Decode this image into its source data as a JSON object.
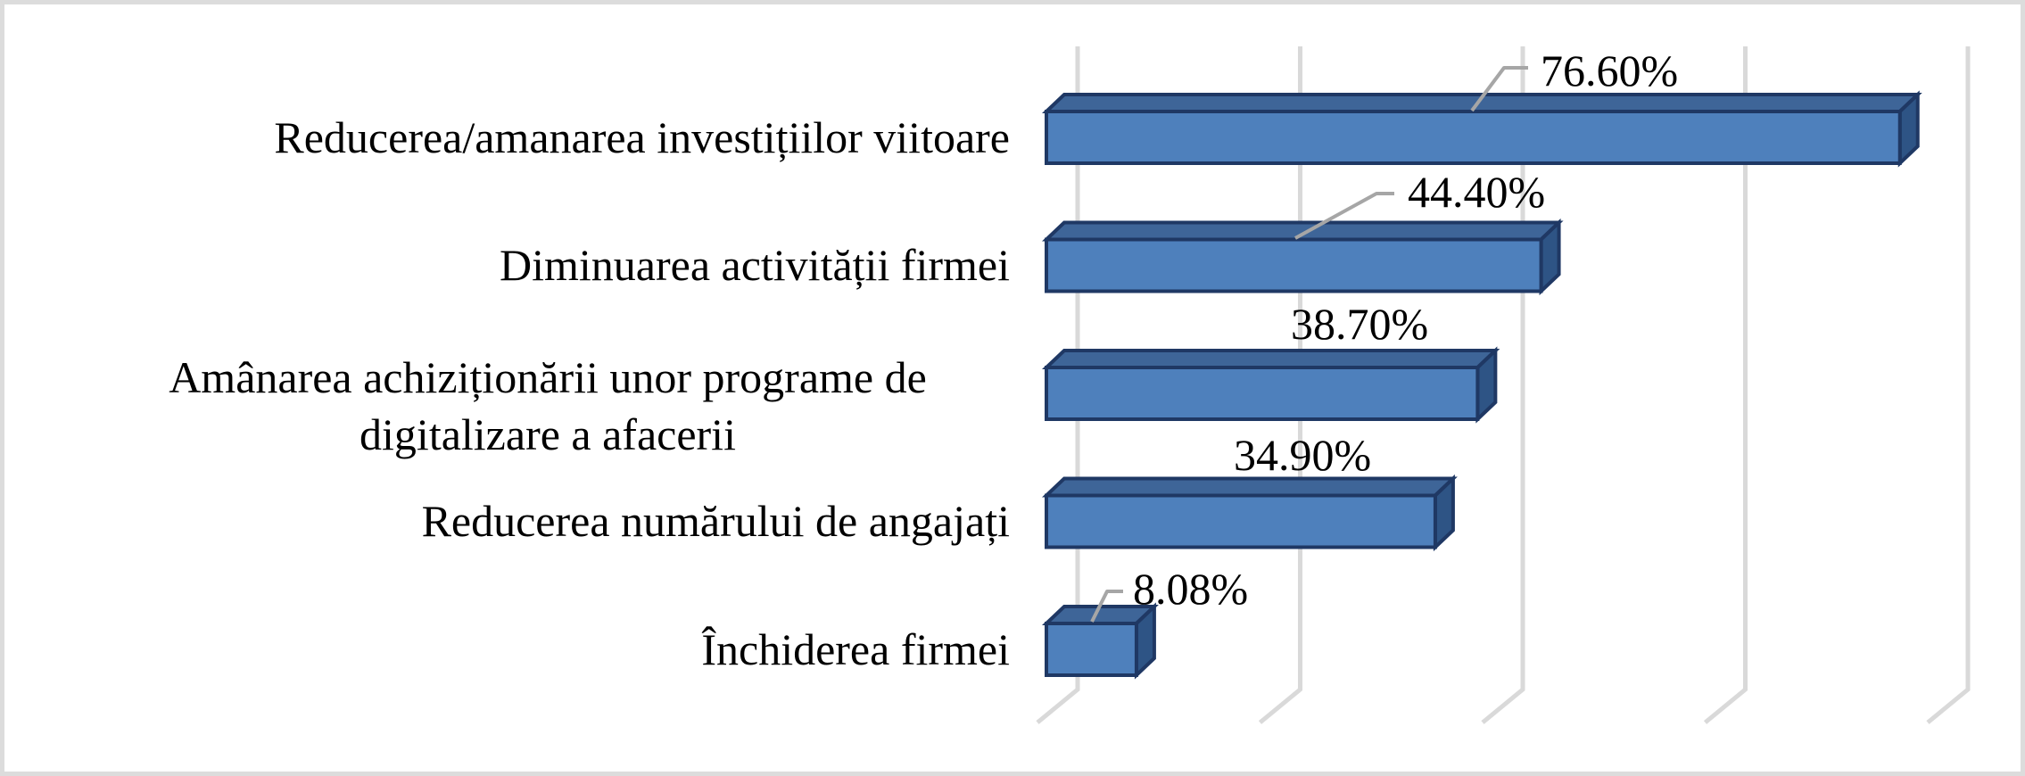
{
  "chart_data": {
    "type": "bar",
    "style": "3d-horizontal-excel",
    "title": "",
    "xlabel": "",
    "ylabel": "",
    "unit": "%",
    "categories": [
      [
        "Reducerea/amanarea investițiilor viitoare"
      ],
      [
        "Diminuarea activității firmei"
      ],
      [
        "Amânarea achiziționării unor programe de",
        "digitalizare a afacerii"
      ],
      [
        "Reducerea numărului de angajați"
      ],
      [
        "Închiderea firmei"
      ]
    ],
    "values": [
      76.6,
      44.4,
      38.7,
      34.9,
      8.08
    ],
    "data_labels": [
      "76.60%",
      "44.40%",
      "38.70%",
      "34.90%",
      "8.08%"
    ],
    "xlim": [
      0,
      86.6
    ],
    "gridlines": {
      "count": 5,
      "interval_percent": 20,
      "axis_tick_labels_visible": false
    },
    "legend": "none",
    "leader_lines_on": [
      0,
      1,
      4
    ],
    "colors": {
      "bar_front": "#4E80BC",
      "bar_top": "#3E6598",
      "bar_side": "#2E5485",
      "bar_border": "#1F3864",
      "gridline": "#D9D9D9",
      "leader_line": "#A6A6A6",
      "label_text": "#000000",
      "background": "#FFFFFF",
      "frame_border": "#DCDCDC"
    }
  }
}
